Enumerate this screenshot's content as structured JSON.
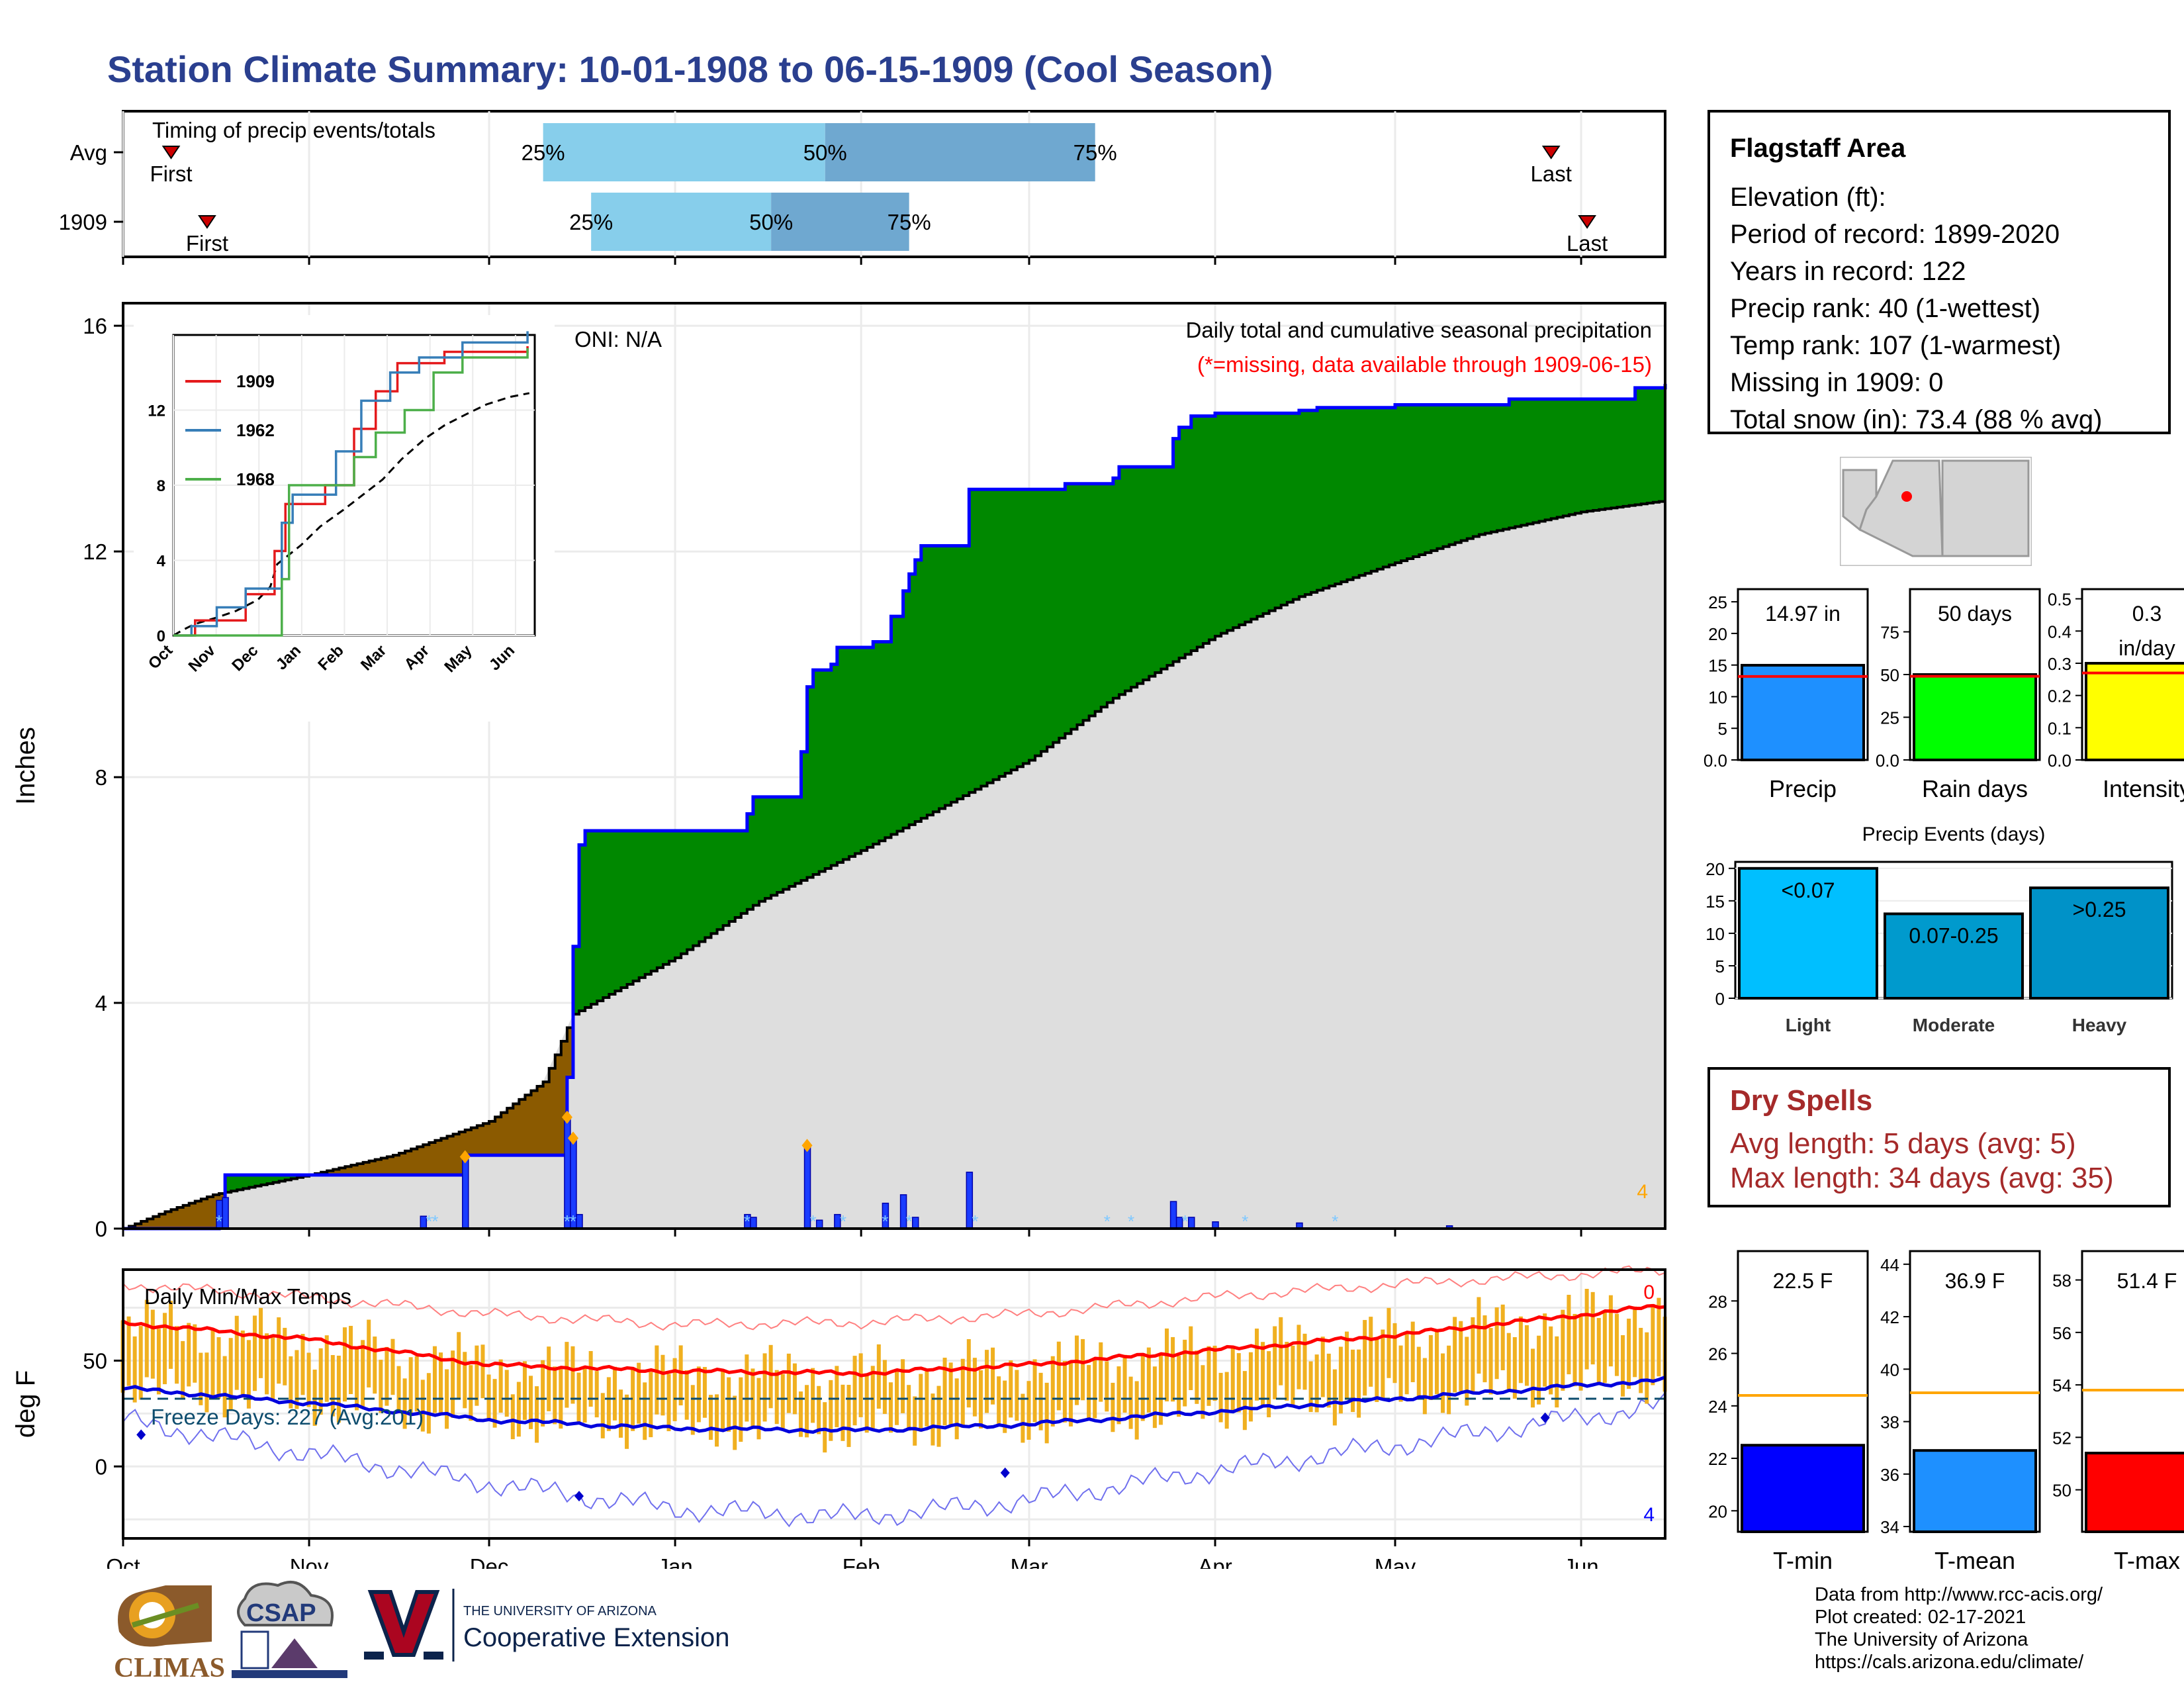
{
  "title": "Station Climate Summary: 10-01-1908 to 06-15-1909 (Cool Season)",
  "timing": {
    "label": "Timing of precip events/totals",
    "rows": [
      {
        "name": "Avg",
        "first_date": "1908-10-09",
        "q25_date": "1908-12-10",
        "q50_date": "1909-01-26",
        "q75_date": "1909-03-12",
        "last_date": "1909-05-27"
      },
      {
        "name": "1909",
        "first_date": "1908-10-15",
        "q25_date": "1908-12-18",
        "q50_date": "1909-01-17",
        "q75_date": "1909-02-09",
        "last_date": "1909-06-02"
      }
    ],
    "first_label": "First",
    "last_label": "Last",
    "q25_label": "25%",
    "q50_label": "50%",
    "q75_label": "75%"
  },
  "chart_data": [
    {
      "type": "area",
      "title": "Daily total and cumulative seasonal precipitation",
      "subtitle": "(*=missing, data available through 1909-06-15)",
      "annotation": "ONI: N/A",
      "ylabel": "Inches",
      "ylim": [
        0,
        16.4
      ],
      "yticks": [
        0,
        4,
        8,
        12,
        16
      ],
      "xlim": [
        "1908-10-01",
        "1909-06-15"
      ],
      "xticks": [
        {
          "label": "Oct",
          "date": "1908-10-01"
        },
        {
          "label": "Nov",
          "date": "1908-11-01"
        },
        {
          "label": "Dec",
          "date": "1908-12-01"
        },
        {
          "label": "Jan",
          "date": "1909-01-01"
        },
        {
          "label": "Feb",
          "date": "1909-02-01"
        },
        {
          "label": "Mar",
          "date": "1909-03-01"
        },
        {
          "label": "Apr",
          "date": "1909-04-01"
        },
        {
          "label": "May",
          "date": "1909-05-01"
        },
        {
          "label": "Jun",
          "date": "1909-06-01"
        }
      ],
      "cumulative_1909": [
        [
          "1908-10-01",
          0.0
        ],
        [
          "1908-10-16",
          0.0
        ],
        [
          "1908-10-17",
          0.38
        ],
        [
          "1908-10-18",
          0.95
        ],
        [
          "1908-11-26",
          0.95
        ],
        [
          "1908-11-27",
          1.3
        ],
        [
          "1908-12-13",
          1.3
        ],
        [
          "1908-12-14",
          2.68
        ],
        [
          "1908-12-15",
          5.0
        ],
        [
          "1908-12-16",
          6.8
        ],
        [
          "1908-12-17",
          7.05
        ],
        [
          "1909-01-12",
          7.05
        ],
        [
          "1909-01-13",
          7.35
        ],
        [
          "1909-01-14",
          7.65
        ],
        [
          "1909-01-21",
          7.65
        ],
        [
          "1909-01-22",
          8.45
        ],
        [
          "1909-01-23",
          9.6
        ],
        [
          "1909-01-24",
          9.9
        ],
        [
          "1909-01-27",
          10.0
        ],
        [
          "1909-01-28",
          10.3
        ],
        [
          "1909-02-03",
          10.4
        ],
        [
          "1909-02-06",
          10.85
        ],
        [
          "1909-02-08",
          11.3
        ],
        [
          "1909-02-09",
          11.6
        ],
        [
          "1909-02-10",
          11.85
        ],
        [
          "1909-02-11",
          12.1
        ],
        [
          "1909-02-18",
          12.1
        ],
        [
          "1909-02-19",
          13.1
        ],
        [
          "1909-03-06",
          13.1
        ],
        [
          "1909-03-07",
          13.2
        ],
        [
          "1909-03-15",
          13.3
        ],
        [
          "1909-03-16",
          13.5
        ],
        [
          "1909-03-24",
          13.5
        ],
        [
          "1909-03-25",
          14.0
        ],
        [
          "1909-03-26",
          14.2
        ],
        [
          "1909-03-28",
          14.4
        ],
        [
          "1909-04-01",
          14.45
        ],
        [
          "1909-04-15",
          14.5
        ],
        [
          "1909-04-18",
          14.55
        ],
        [
          "1909-05-01",
          14.6
        ],
        [
          "1909-05-20",
          14.7
        ],
        [
          "1909-06-10",
          14.9
        ],
        [
          "1909-06-15",
          14.97
        ]
      ],
      "cumulative_avg": [
        [
          "1908-10-01",
          0.0
        ],
        [
          "1908-10-08",
          0.3
        ],
        [
          "1908-10-16",
          0.6
        ],
        [
          "1908-11-01",
          0.95
        ],
        [
          "1908-11-15",
          1.3
        ],
        [
          "1908-12-01",
          1.9
        ],
        [
          "1908-12-10",
          2.6
        ],
        [
          "1908-12-15",
          3.8
        ],
        [
          "1909-01-01",
          4.8
        ],
        [
          "1909-01-15",
          5.8
        ],
        [
          "1909-02-01",
          6.7
        ],
        [
          "1909-02-15",
          7.5
        ],
        [
          "1909-03-01",
          8.3
        ],
        [
          "1909-03-15",
          9.4
        ],
        [
          "1909-04-01",
          10.5
        ],
        [
          "1909-04-15",
          11.2
        ],
        [
          "1909-05-01",
          11.8
        ],
        [
          "1909-05-15",
          12.3
        ],
        [
          "1909-06-01",
          12.7
        ],
        [
          "1909-06-15",
          12.9
        ]
      ],
      "daily_precip": [
        [
          "1908-10-17",
          0.5
        ],
        [
          "1908-10-18",
          0.55
        ],
        [
          "1908-11-20",
          0.22
        ],
        [
          "1908-11-27",
          1.25
        ],
        [
          "1908-12-14",
          1.95
        ],
        [
          "1908-12-15",
          1.58
        ],
        [
          "1908-12-16",
          0.25
        ],
        [
          "1909-01-13",
          0.25
        ],
        [
          "1909-01-14",
          0.2
        ],
        [
          "1909-01-23",
          1.45
        ],
        [
          "1909-01-25",
          0.15
        ],
        [
          "1909-01-28",
          0.25
        ],
        [
          "1909-02-05",
          0.45
        ],
        [
          "1909-02-08",
          0.6
        ],
        [
          "1909-02-10",
          0.2
        ],
        [
          "1909-02-19",
          1.0
        ],
        [
          "1909-03-25",
          0.48
        ],
        [
          "1909-03-26",
          0.2
        ],
        [
          "1909-03-28",
          0.2
        ],
        [
          "1909-04-01",
          0.12
        ],
        [
          "1909-04-15",
          0.1
        ],
        [
          "1909-05-10",
          0.05
        ]
      ],
      "corner_value": "4"
    },
    {
      "type": "line",
      "title": "Daily Min/Max Temps",
      "ylabel": "deg F",
      "ylim": [
        -34,
        93
      ],
      "yticks": [
        0,
        50
      ],
      "freeze_label": "Freeze Days: 227 (Avg:201)",
      "freeze_line": 32,
      "corner_top": "0",
      "corner_bottom": "4",
      "avg_max": [
        [
          "1908-10-01",
          68
        ],
        [
          "1908-11-01",
          60
        ],
        [
          "1908-12-01",
          48
        ],
        [
          "1909-01-01",
          45
        ],
        [
          "1909-02-01",
          44
        ],
        [
          "1909-03-01",
          48
        ],
        [
          "1909-04-01",
          55
        ],
        [
          "1909-05-01",
          62
        ],
        [
          "1909-06-15",
          76
        ]
      ],
      "avg_min": [
        [
          "1908-10-01",
          37
        ],
        [
          "1908-11-01",
          30
        ],
        [
          "1908-12-01",
          22
        ],
        [
          "1909-01-01",
          18
        ],
        [
          "1909-02-01",
          17
        ],
        [
          "1909-03-01",
          20
        ],
        [
          "1909-04-01",
          26
        ],
        [
          "1909-05-01",
          32
        ],
        [
          "1909-06-15",
          41
        ]
      ],
      "rec_max": [
        [
          "1908-10-01",
          86
        ],
        [
          "1908-11-01",
          80
        ],
        [
          "1908-12-01",
          72
        ],
        [
          "1909-01-01",
          67
        ],
        [
          "1909-02-01",
          68
        ],
        [
          "1909-03-01",
          72
        ],
        [
          "1909-04-01",
          80
        ],
        [
          "1909-05-01",
          86
        ],
        [
          "1909-06-15",
          93
        ]
      ],
      "rec_min": [
        [
          "1908-10-01",
          22
        ],
        [
          "1908-11-01",
          6
        ],
        [
          "1908-12-01",
          -8
        ],
        [
          "1909-01-01",
          -20
        ],
        [
          "1909-02-01",
          -24
        ],
        [
          "1909-03-01",
          -16
        ],
        [
          "1909-04-01",
          -2
        ],
        [
          "1909-05-01",
          10
        ],
        [
          "1909-06-15",
          29
        ]
      ],
      "min_markers": [
        [
          "1908-10-04",
          15
        ],
        [
          "1908-12-16",
          -14
        ],
        [
          "1909-02-25",
          -3
        ],
        [
          "1909-05-26",
          23
        ]
      ]
    },
    {
      "type": "line",
      "title": "",
      "ylim": [
        0,
        16
      ],
      "yticks": [
        0,
        4,
        8,
        12
      ],
      "xticks": [
        "Oct",
        "Nov",
        "Dec",
        "Jan",
        "Feb",
        "Mar",
        "Apr",
        "May",
        "Jun"
      ],
      "series": [
        {
          "name": "1909",
          "color": "#e41a1c"
        },
        {
          "name": "1962",
          "color": "#377eb8"
        },
        {
          "name": "1968",
          "color": "#4daf4a"
        }
      ]
    },
    {
      "type": "bar",
      "categories": [
        "Precip",
        "Rain days",
        "Intensity"
      ],
      "values": [
        14.97,
        50,
        0.3
      ],
      "labels": [
        "14.97 in",
        "50 days",
        "0.3 in/day"
      ],
      "averages": [
        13.2,
        49,
        0.27
      ],
      "ylims": [
        [
          0,
          27
        ],
        [
          0,
          100
        ],
        [
          0,
          0.53
        ]
      ],
      "yticks": [
        [
          0,
          5,
          10,
          15,
          20,
          25
        ],
        [
          0,
          25,
          50,
          75
        ],
        [
          0.0,
          0.1,
          0.2,
          0.3,
          0.4,
          0.5
        ]
      ],
      "colors": [
        "#1e90ff",
        "#00ff00",
        "#ffff00"
      ]
    },
    {
      "type": "bar",
      "title": "Precip Events (days)",
      "categories": [
        "Light",
        "Moderate",
        "Heavy"
      ],
      "labels": [
        "<0.07",
        "0.07-0.25",
        ">0.25"
      ],
      "values": [
        20,
        13,
        17
      ],
      "ylim": [
        0,
        21
      ],
      "yticks": [
        0,
        5,
        10,
        15,
        20
      ],
      "colors": [
        "#00bfff",
        "#009acd",
        "#0092c8"
      ]
    },
    {
      "type": "bar",
      "categories": [
        "T-min",
        "T-mean",
        "T-max"
      ],
      "values": [
        22.5,
        36.9,
        51.4
      ],
      "labels": [
        "22.5 F",
        "36.9 F",
        "51.4 F"
      ],
      "averages": [
        24.4,
        39.1,
        53.8
      ],
      "ylims": [
        [
          19.2,
          29.9
        ],
        [
          33.8,
          44.5
        ],
        [
          48.4,
          59.1
        ]
      ],
      "yticks": [
        [
          20,
          22,
          24,
          26,
          28
        ],
        [
          34,
          36,
          38,
          40,
          42,
          44
        ],
        [
          50,
          52,
          54,
          56,
          58
        ]
      ],
      "colors": [
        "#0000ff",
        "#1e90ff",
        "#ff0000"
      ]
    }
  ],
  "station": {
    "name": "Flagstaff Area",
    "lines": [
      "Elevation (ft):",
      "Period of record: 1899-2020",
      "Years in record: 122",
      "Precip rank: 40 (1-wettest)",
      "Temp rank: 107 (1-warmest)",
      "Missing in 1909: 0",
      "Total snow (in): 73.4 (88 % avg)"
    ]
  },
  "dry_spells": {
    "title": "Dry Spells",
    "avg": "Avg length: 5 days (avg: 5)",
    "max": "Max length: 34 days (avg: 35)"
  },
  "credits": [
    "Data from http://www.rcc-acis.org/",
    "Plot created: 02-17-2021",
    "The University of Arizona",
    "https://cals.arizona.edu/climate/"
  ],
  "logos": {
    "climas": "CLIMAS",
    "csap": "CSAP",
    "ua_small": "THE UNIVERSITY OF ARIZONA",
    "ua_big": "Cooperative Extension"
  },
  "colors": {
    "title": "#2a3f8f",
    "cum_above": "#008800",
    "cum_below": "#8b5a00",
    "normal_fill": "#dedede",
    "cum_line": "#0000ff",
    "temp_bar": "#f0b020",
    "avg_max_line": "#ff0000",
    "avg_min_line": "#0000dd"
  }
}
